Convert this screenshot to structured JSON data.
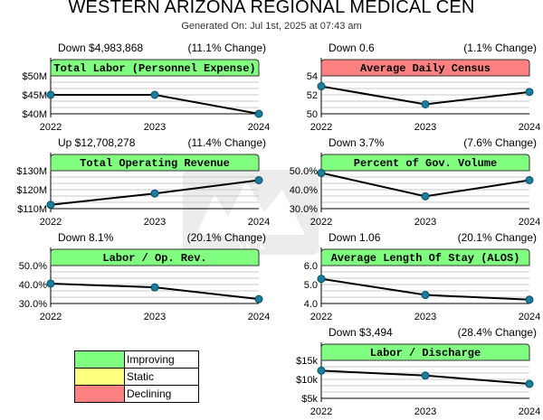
{
  "header": {
    "title": "WESTERN ARIZONA REGIONAL MEDICAL CEN",
    "subtitle": "Generated On: Jul 1st, 2025 at 07:43 am"
  },
  "colors": {
    "improving": "#80FF80",
    "static": "#FFFF80",
    "declining": "#FF8080",
    "line": "#000000",
    "marker": "#1a7f9e"
  },
  "legend": [
    {
      "label": "Improving",
      "color": "#80FF80"
    },
    {
      "label": "Static",
      "color": "#FFFF80"
    },
    {
      "label": "Declining",
      "color": "#FF8080"
    }
  ],
  "chart_data": [
    {
      "type": "line",
      "title": "Total Labor (Personnel Expense)",
      "status": "improving",
      "change": "Down $4,983,868",
      "pct_change": "(11.1% Change)",
      "x": [
        "2022",
        "2023",
        "2024"
      ],
      "values": [
        45000000,
        45000000,
        40000000
      ],
      "ylim": [
        40000000,
        50000000
      ],
      "yticks": [
        "$40M",
        "$45M",
        "$50M"
      ]
    },
    {
      "type": "line",
      "title": "Average Daily Census",
      "status": "declining",
      "change": "Down 0.6",
      "pct_change": "(1.1% Change)",
      "x": [
        "2022",
        "2023",
        "2024"
      ],
      "values": [
        52.9,
        51.0,
        52.3
      ],
      "ylim": [
        50,
        54
      ],
      "yticks": [
        "50",
        "52",
        "54"
      ]
    },
    {
      "type": "line",
      "title": "Total Operating Revenue",
      "status": "improving",
      "change": "Up $12,708,278",
      "pct_change": "(11.4% Change)",
      "x": [
        "2022",
        "2023",
        "2024"
      ],
      "values": [
        112000000,
        118000000,
        125000000
      ],
      "ylim": [
        110000000,
        130000000
      ],
      "yticks": [
        "$110M",
        "$120M",
        "$130M"
      ]
    },
    {
      "type": "line",
      "title": "Percent of Gov. Volume",
      "status": "improving",
      "change": "Down 3.7%",
      "pct_change": "(7.6% Change)",
      "x": [
        "2022",
        "2023",
        "2024"
      ],
      "values": [
        48.8,
        36.5,
        45.0
      ],
      "ylim": [
        30,
        50
      ],
      "yticks": [
        "30.0%",
        "40.0%",
        "50.0%"
      ]
    },
    {
      "type": "line",
      "title": "Labor / Op. Rev.",
      "status": "improving",
      "change": "Down 8.1%",
      "pct_change": "(20.1% Change)",
      "x": [
        "2022",
        "2023",
        "2024"
      ],
      "values": [
        40.5,
        38.5,
        32.3
      ],
      "ylim": [
        30,
        50
      ],
      "yticks": [
        "30.0%",
        "40.0%",
        "50.0%"
      ]
    },
    {
      "type": "line",
      "title": "Average Length Of Stay (ALOS)",
      "status": "improving",
      "change": "Down 1.06",
      "pct_change": "(20.1% Change)",
      "x": [
        "2022",
        "2023",
        "2024"
      ],
      "values": [
        5.3,
        4.45,
        4.2
      ],
      "ylim": [
        4,
        6
      ],
      "yticks": [
        "4.0",
        "5.0",
        "6.0"
      ]
    },
    {
      "type": "line",
      "title": "Labor / Discharge",
      "status": "improving",
      "change": "Down $3,494",
      "pct_change": "(28.4% Change)",
      "x": [
        "2022",
        "2023",
        "2024"
      ],
      "values": [
        12300,
        11000,
        8800
      ],
      "ylim": [
        5000,
        15000
      ],
      "yticks": [
        "$5k",
        "$10k",
        "$15k"
      ]
    }
  ]
}
